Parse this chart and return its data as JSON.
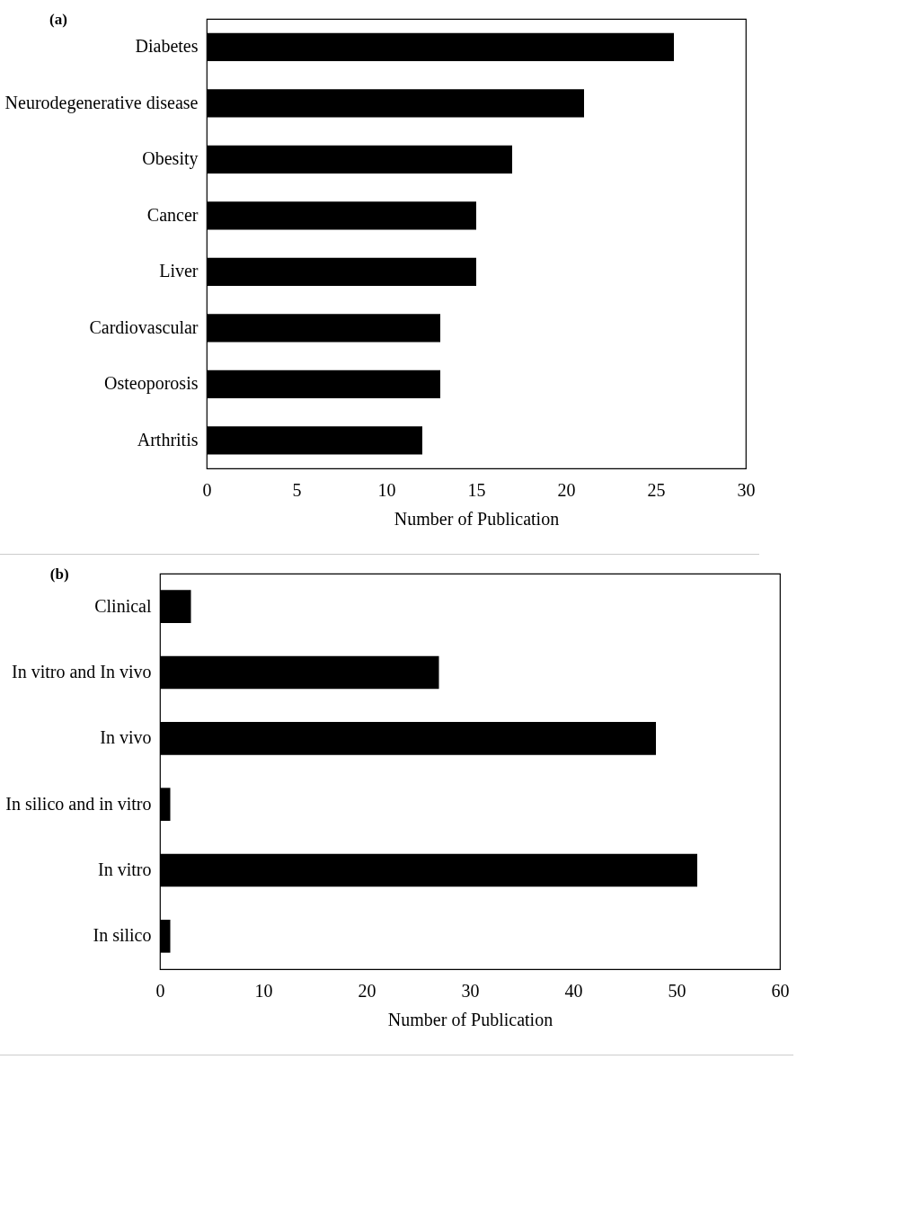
{
  "chart_data": [
    {
      "type": "bar",
      "title": "(a)",
      "orientation": "horizontal",
      "categories": [
        "Diabetes",
        "Neurodegenerative disease",
        "Obesity",
        "Cancer",
        "Liver",
        "Cardiovascular",
        "Osteoporosis",
        "Arthritis"
      ],
      "values": [
        26,
        21,
        17,
        15,
        15,
        13,
        13,
        12
      ],
      "color": "#000000",
      "xlabel": "Number of Publication",
      "xlim": [
        0,
        30
      ],
      "xticks": [
        0,
        5,
        10,
        15,
        20,
        25,
        30
      ],
      "grid": false
    },
    {
      "type": "bar",
      "title": "(b)",
      "orientation": "horizontal",
      "categories": [
        "Clinical",
        "In vitro and In vivo",
        "In vivo",
        "In silico and in vitro",
        "In vitro",
        "In silico"
      ],
      "values": [
        3,
        27,
        48,
        1,
        52,
        1
      ],
      "color": "#000000",
      "xlabel": "Number of Publication",
      "xlim": [
        0,
        60
      ],
      "xticks": [
        0,
        10,
        20,
        30,
        40,
        50,
        60
      ],
      "grid": false
    }
  ]
}
